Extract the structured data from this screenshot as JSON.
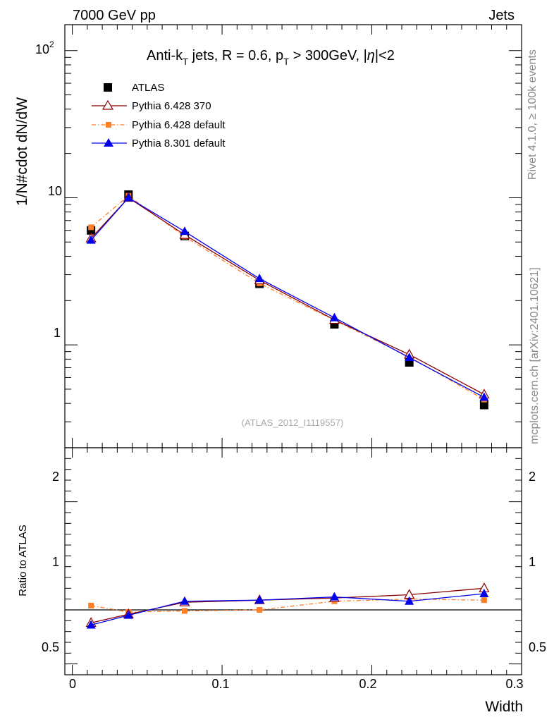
{
  "header": {
    "energy_label": "7000 GeV pp",
    "process_label": "Jets",
    "side_label_rivet": "Rivet 4.1.0, ≥ 100k events",
    "side_label_mcplots": "mcplots.cern.ch [arXiv:2401.10621]"
  },
  "colors": {
    "atlas": "#000000",
    "pythia6_370": "#8b0000",
    "pythia6_default": "#ff7f27",
    "pythia8_default": "#0000ee"
  },
  "chart_data": [
    {
      "type": "line",
      "title_parts": {
        "a": "Anti-k",
        "a_sub": "T",
        "b": " jets, R = 0.6, p",
        "b_sub": "T",
        "c": " > 300GeV, |",
        "d": "η",
        "e": "|<2"
      },
      "watermark": "(ATLAS_2012_I1119557)",
      "ylabel": "1/N#cdot dN/dW",
      "yscale": "log",
      "ylim": [
        0.2,
        150
      ],
      "xlim": [
        -0.005,
        0.3
      ],
      "ytick_labels": {
        "t1": "1",
        "t10": "10",
        "t100_base": "10",
        "t100_exp": "2"
      },
      "x": [
        0.0125,
        0.0375,
        0.075,
        0.125,
        0.175,
        0.225,
        0.275
      ],
      "series": [
        {
          "name": "ATLAS",
          "values": [
            6.0,
            10.5,
            5.5,
            2.6,
            1.38,
            0.76,
            0.39
          ]
        },
        {
          "name": "Pythia 6.428 370",
          "values": [
            5.3,
            10.0,
            5.6,
            2.75,
            1.48,
            0.86,
            0.46
          ]
        },
        {
          "name": "Pythia 6.428 default",
          "values": [
            6.3,
            10.3,
            5.45,
            2.62,
            1.47,
            0.83,
            0.425
          ]
        },
        {
          "name": "Pythia 8.301 default",
          "values": [
            5.15,
            10.0,
            5.9,
            2.82,
            1.53,
            0.82,
            0.44
          ]
        }
      ]
    },
    {
      "type": "line",
      "ylabel": "Ratio to ATLAS",
      "xlabel": "Width",
      "ylim": [
        0.4,
        2.5
      ],
      "ytick_labels": [
        "0.5",
        "1",
        "2"
      ],
      "xtick_labels": [
        "0",
        "0.1",
        "0.2",
        "0.3"
      ],
      "x": [
        0.0125,
        0.0375,
        0.075,
        0.125,
        0.175,
        0.225,
        0.275
      ],
      "series": [
        {
          "name": "Pythia 6.428 370",
          "values": [
            0.88,
            0.96,
            1.07,
            1.09,
            1.11,
            1.14,
            1.2
          ]
        },
        {
          "name": "Pythia 6.428 default",
          "values": [
            1.04,
            0.98,
            0.99,
            1.0,
            1.08,
            1.1,
            1.09
          ]
        },
        {
          "name": "Pythia 8.301 default",
          "values": [
            0.86,
            0.95,
            1.08,
            1.09,
            1.12,
            1.08,
            1.15
          ]
        }
      ]
    }
  ]
}
